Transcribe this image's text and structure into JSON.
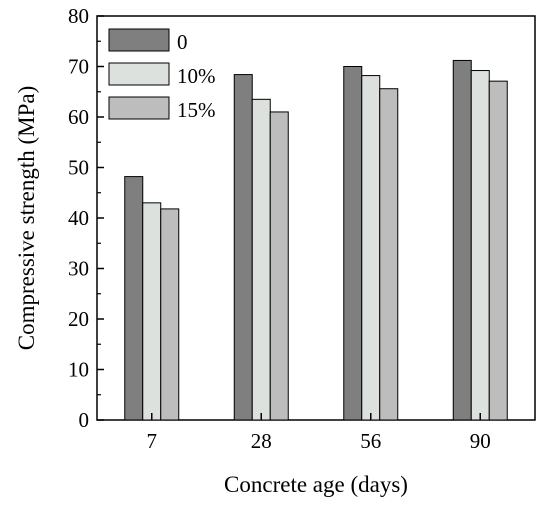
{
  "chart_data": {
    "type": "bar",
    "title": "",
    "xlabel": "Concrete age (days)",
    "ylabel": "Compressive strength (MPa)",
    "categories": [
      "7",
      "28",
      "56",
      "90"
    ],
    "ylim": [
      0,
      80
    ],
    "yticks": [
      "0",
      "10",
      "20",
      "30",
      "40",
      "50",
      "60",
      "70",
      "80"
    ],
    "grid": false,
    "legend_position": "top-left",
    "series": [
      {
        "name": "0",
        "color": "#7f7f7f",
        "values": [
          48.2,
          68.4,
          70.0,
          71.2
        ]
      },
      {
        "name": "10%",
        "color": "#dde1dd",
        "values": [
          43.0,
          63.5,
          68.2,
          69.2
        ]
      },
      {
        "name": "15%",
        "color": "#bdbdbd",
        "values": [
          41.8,
          61.0,
          65.6,
          67.1
        ]
      }
    ]
  }
}
